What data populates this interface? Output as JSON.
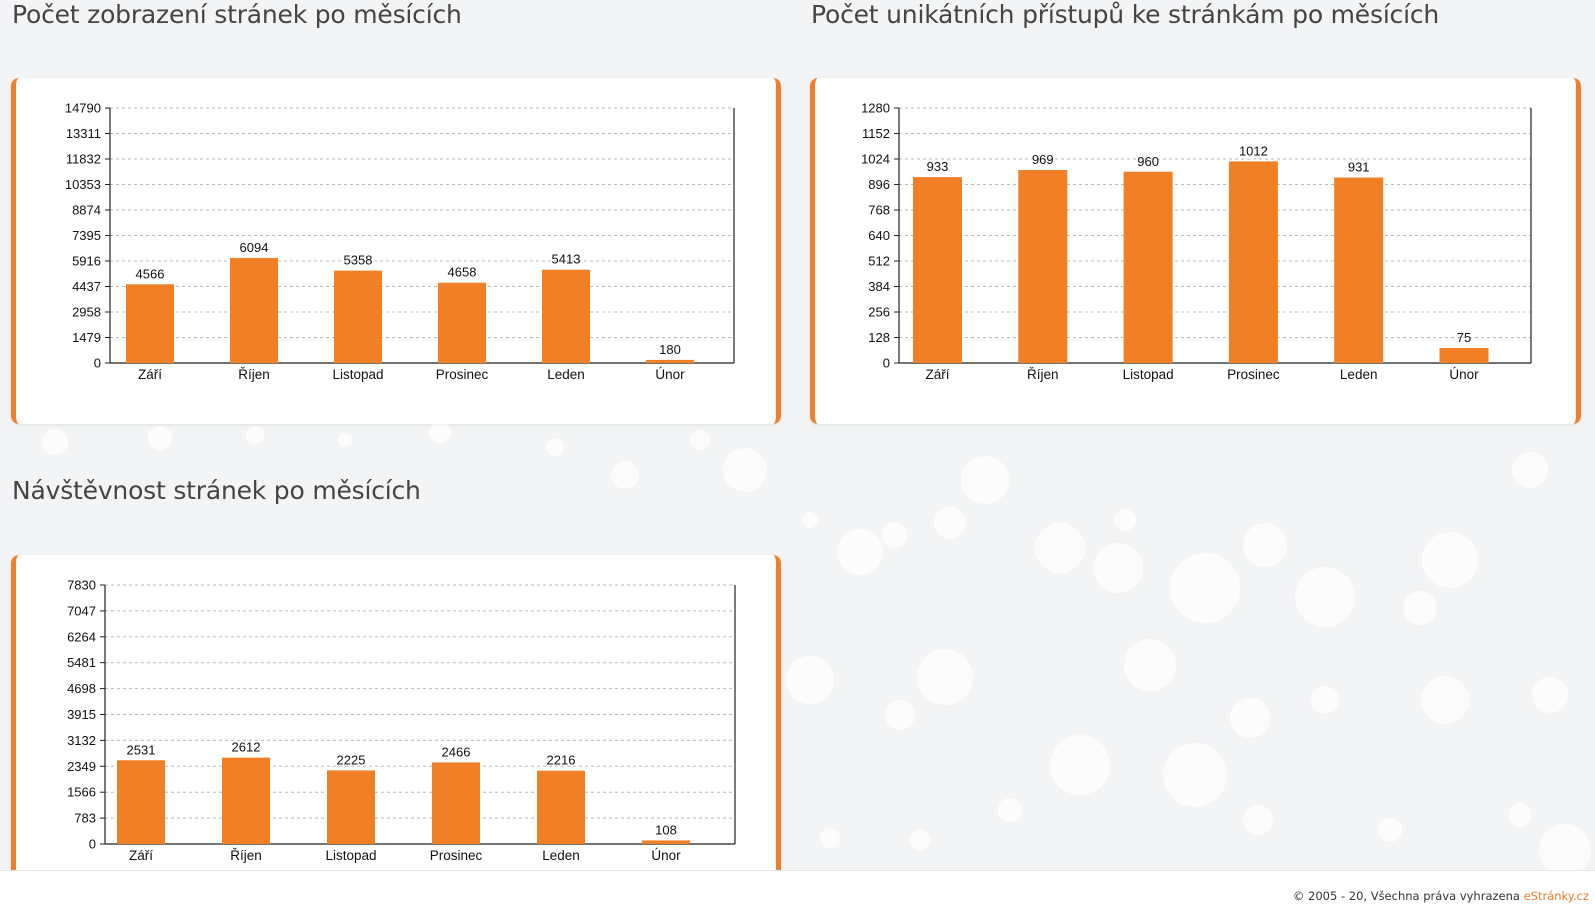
{
  "theme": {
    "accent": "#ee7f2d",
    "bar_color": "#f07f26",
    "grid_color": "#bbbbbb",
    "background": "#f3f4f5"
  },
  "charts": [
    {
      "title": "Počet zobrazení stránek po měsících",
      "chart_data": {
        "type": "bar",
        "categories": [
          "Září",
          "Říjen",
          "Listopad",
          "Prosinec",
          "Leden",
          "Únor"
        ],
        "values": [
          4566,
          6094,
          5358,
          4658,
          5413,
          180
        ],
        "yticks": [
          0,
          1479,
          2958,
          4437,
          5916,
          7395,
          8874,
          10353,
          11832,
          13311,
          14790
        ],
        "ylim": [
          0,
          14790
        ],
        "grid": true,
        "title": "",
        "xlabel": "",
        "ylabel": ""
      }
    },
    {
      "title": "Počet unikátních přístupů ke stránkám po měsících",
      "chart_data": {
        "type": "bar",
        "categories": [
          "Září",
          "Říjen",
          "Listopad",
          "Prosinec",
          "Leden",
          "Únor"
        ],
        "values": [
          933,
          969,
          960,
          1012,
          931,
          75
        ],
        "yticks": [
          0,
          128,
          256,
          384,
          512,
          640,
          768,
          896,
          1024,
          1152,
          1280
        ],
        "ylim": [
          0,
          1280
        ],
        "grid": true,
        "title": "",
        "xlabel": "",
        "ylabel": ""
      }
    },
    {
      "title": "Návštěvnost stránek po měsících",
      "chart_data": {
        "type": "bar",
        "categories": [
          "Září",
          "Říjen",
          "Listopad",
          "Prosinec",
          "Leden",
          "Únor"
        ],
        "values": [
          2531,
          2612,
          2225,
          2466,
          2216,
          108
        ],
        "yticks": [
          0,
          783,
          1566,
          2349,
          3132,
          3915,
          4698,
          5481,
          6264,
          7047,
          7830
        ],
        "ylim": [
          0,
          7830
        ],
        "grid": true,
        "title": "",
        "xlabel": "",
        "ylabel": ""
      }
    }
  ],
  "footer": {
    "copyright": "© 2005 - 20, Všechna práva vyhrazena",
    "brand_link": "eStránky.cz"
  }
}
